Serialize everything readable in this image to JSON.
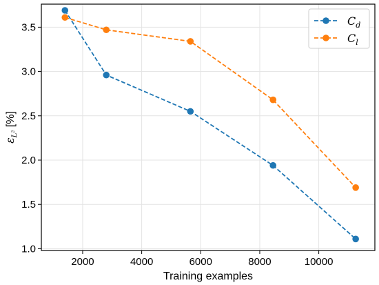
{
  "chart_data": {
    "type": "line",
    "title": "",
    "xlabel": "Training examples",
    "ylabel": "ε_{L²} [%]",
    "ylabel_main": "ε",
    "ylabel_sub": "L²",
    "ylabel_unit": " [%]",
    "xlim": [
      600,
      11900
    ],
    "ylim": [
      0.98,
      3.76
    ],
    "xticks": [
      2000,
      4000,
      6000,
      8000,
      10000
    ],
    "xtick_labels": [
      "2000",
      "4000",
      "6000",
      "8000",
      "10000"
    ],
    "yticks": [
      1.0,
      1.5,
      2.0,
      2.5,
      3.0,
      3.5
    ],
    "ytick_labels": [
      "1.0",
      "1.5",
      "2.0",
      "2.5",
      "3.0",
      "3.5"
    ],
    "grid": true,
    "legend_position": "top-right",
    "x": [
      1400,
      2800,
      5650,
      8450,
      11250
    ],
    "series": [
      {
        "name": "C_d",
        "name_main": "C",
        "name_sub": "d",
        "color": "#1f77b4",
        "values": [
          3.69,
          2.96,
          2.55,
          1.94,
          1.11
        ]
      },
      {
        "name": "C_l",
        "name_main": "C",
        "name_sub": "l",
        "color": "#ff7f0e",
        "values": [
          3.61,
          3.47,
          3.34,
          2.68,
          1.69
        ]
      }
    ]
  }
}
